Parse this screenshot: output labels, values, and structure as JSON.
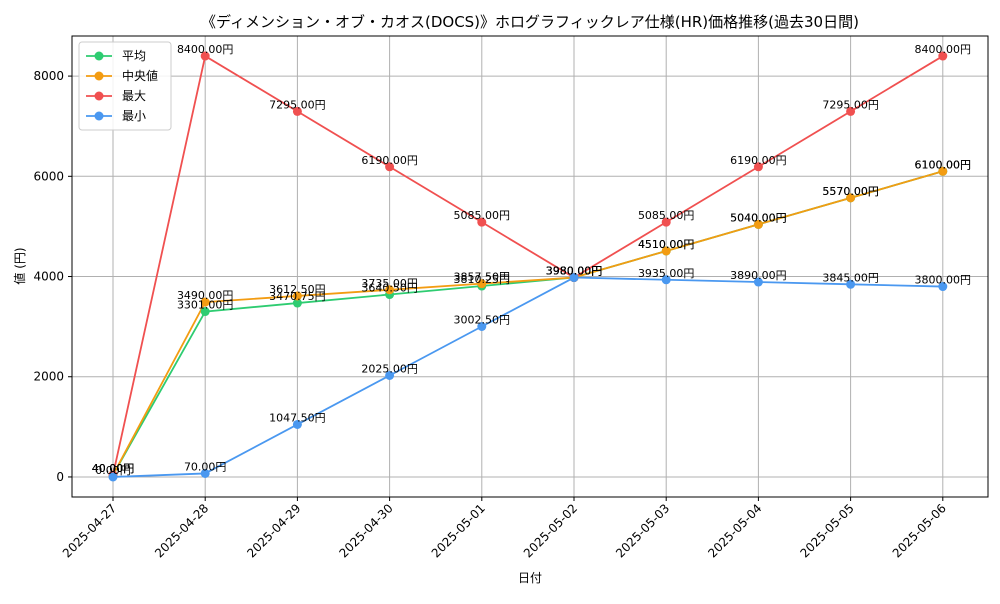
{
  "chart_data": {
    "type": "line",
    "title": "《ディメンション・オブ・カオス(DOCS)》ホログラフィックレア仕様(HR)価格推移(過去30日間)",
    "xlabel": "日付",
    "ylabel": "値 (円)",
    "x": [
      "2025-04-27",
      "2025-04-28",
      "2025-04-29",
      "2025-04-30",
      "2025-05-01",
      "2025-05-02",
      "2025-05-03",
      "2025-05-04",
      "2025-05-05",
      "2025-05-06"
    ],
    "ylim": [
      -400,
      8800
    ],
    "yticks": [
      0,
      2000,
      4000,
      6000,
      8000
    ],
    "grid": true,
    "legend_position": "top-left",
    "label_suffix": "円",
    "series": [
      {
        "name": "平均",
        "color": "#2ecc71",
        "values": [
          40,
          3301,
          3470.75,
          3640.5,
          3810.25,
          3980,
          4510,
          5040,
          5570,
          6100
        ]
      },
      {
        "name": "中央値",
        "color": "#f39c12",
        "values": [
          40,
          3490,
          3612.5,
          3735,
          3857.5,
          3980,
          4510,
          5040,
          5570,
          6100
        ]
      },
      {
        "name": "最大",
        "color": "#f05050",
        "values": [
          40,
          8400,
          7295,
          6190,
          5085,
          3980,
          5085,
          6190,
          7295,
          8400
        ]
      },
      {
        "name": "最小",
        "color": "#4a98f0",
        "values": [
          0,
          70,
          1047.5,
          2025,
          3002.5,
          3980,
          3935,
          3890,
          3845,
          3800
        ]
      }
    ]
  }
}
